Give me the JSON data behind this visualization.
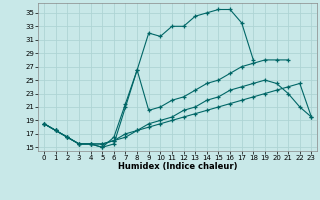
{
  "xlabel": "Humidex (Indice chaleur)",
  "background_color": "#c8e8e8",
  "grid_color": "#aed4d4",
  "line_color": "#006666",
  "xlim": [
    -0.5,
    23.5
  ],
  "ylim": [
    14.5,
    36.5
  ],
  "yticks": [
    15,
    17,
    19,
    21,
    23,
    25,
    27,
    29,
    31,
    33,
    35
  ],
  "xticks": [
    0,
    1,
    2,
    3,
    4,
    5,
    6,
    7,
    8,
    9,
    10,
    11,
    12,
    13,
    14,
    15,
    16,
    17,
    18,
    19,
    20,
    21,
    22,
    23
  ],
  "line_top_x": [
    0,
    1,
    2,
    3,
    4,
    5,
    6,
    7,
    8,
    9,
    10,
    11,
    12,
    13,
    14,
    15,
    16,
    17,
    18
  ],
  "line_top_y": [
    18.5,
    17.5,
    16.5,
    15.5,
    15.5,
    15.0,
    16.5,
    21.5,
    26.5,
    32.0,
    31.5,
    33.0,
    33.0,
    34.5,
    35.0,
    35.5,
    35.5,
    33.5,
    28.0
  ],
  "line_mid_x": [
    0,
    1,
    2,
    3,
    4,
    5,
    6,
    7,
    8,
    9,
    10,
    11,
    12,
    13,
    14,
    15,
    16,
    17,
    18,
    19,
    20,
    21
  ],
  "line_mid_y": [
    18.5,
    17.5,
    16.5,
    15.5,
    15.5,
    15.0,
    15.5,
    21.0,
    26.5,
    20.5,
    21.0,
    22.0,
    22.5,
    23.5,
    24.5,
    25.0,
    26.0,
    27.0,
    27.5,
    28.0,
    28.0,
    28.0
  ],
  "line_lo1_x": [
    0,
    1,
    2,
    3,
    4,
    5,
    6,
    7,
    8,
    9,
    10,
    11,
    12,
    13,
    14,
    15,
    16,
    17,
    18,
    19,
    20,
    21,
    22,
    23
  ],
  "line_lo1_y": [
    18.5,
    17.5,
    16.5,
    15.5,
    15.5,
    15.5,
    16.0,
    16.5,
    17.5,
    18.5,
    19.0,
    19.5,
    20.5,
    21.0,
    22.0,
    22.5,
    23.5,
    24.0,
    24.5,
    25.0,
    24.5,
    23.0,
    21.0,
    19.5
  ],
  "line_lo2_x": [
    0,
    1,
    2,
    3,
    4,
    5,
    6,
    7,
    8,
    9,
    10,
    11,
    12,
    13,
    14,
    15,
    16,
    17,
    18,
    19,
    20,
    21,
    22,
    23
  ],
  "line_lo2_y": [
    18.5,
    17.5,
    16.5,
    15.5,
    15.5,
    15.5,
    16.0,
    17.0,
    17.5,
    18.0,
    18.5,
    19.0,
    19.5,
    20.0,
    20.5,
    21.0,
    21.5,
    22.0,
    22.5,
    23.0,
    23.5,
    24.0,
    24.5,
    19.5
  ]
}
